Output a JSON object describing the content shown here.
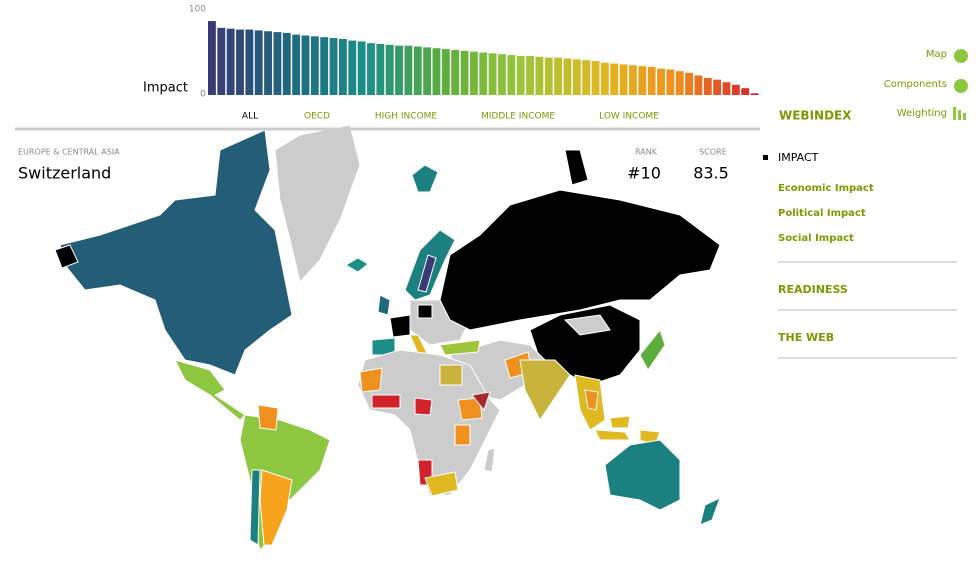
{
  "bar_chart": {
    "label": "Impact",
    "ylim": [
      0,
      100
    ],
    "yticks": [
      0,
      100
    ],
    "values": [
      87,
      79,
      78,
      77,
      77,
      76,
      75,
      74,
      73,
      71,
      70,
      69,
      68,
      67,
      66,
      64,
      63,
      61,
      60,
      59,
      58,
      58,
      57,
      56,
      55,
      54,
      53,
      52,
      51,
      50,
      49,
      48,
      47,
      46,
      46,
      45,
      44,
      44,
      43,
      42,
      41,
      40,
      38,
      37,
      36,
      35,
      34,
      33,
      31,
      30,
      28,
      26,
      23,
      20,
      18,
      15,
      12,
      8,
      2
    ],
    "colors": [
      "#3a3a78",
      "#1f6a80",
      "#1b8e88",
      "#5cae3c",
      "#9cc53a",
      "#e0b820",
      "#f0901e",
      "#d2232a"
    ]
  },
  "tabs": [
    "ALL",
    "OECD",
    "HIGH INCOME",
    "MIDDLE INCOME",
    "LOW INCOME"
  ],
  "brand": "WEBINDEX",
  "links": [
    "Map",
    "Components",
    "Weighting"
  ],
  "country": {
    "region": "EUROPE & CENTRAL ASIA",
    "name": "Switzerland",
    "rank_label": "RANK",
    "score_label": "SCORE",
    "rank": "#10",
    "score": 83.5
  },
  "menu": {
    "active": "IMPACT",
    "subitems": [
      "Economic Impact",
      "Political Impact",
      "Social Impact"
    ],
    "sections": [
      "READINESS",
      "THE WEB"
    ]
  }
}
